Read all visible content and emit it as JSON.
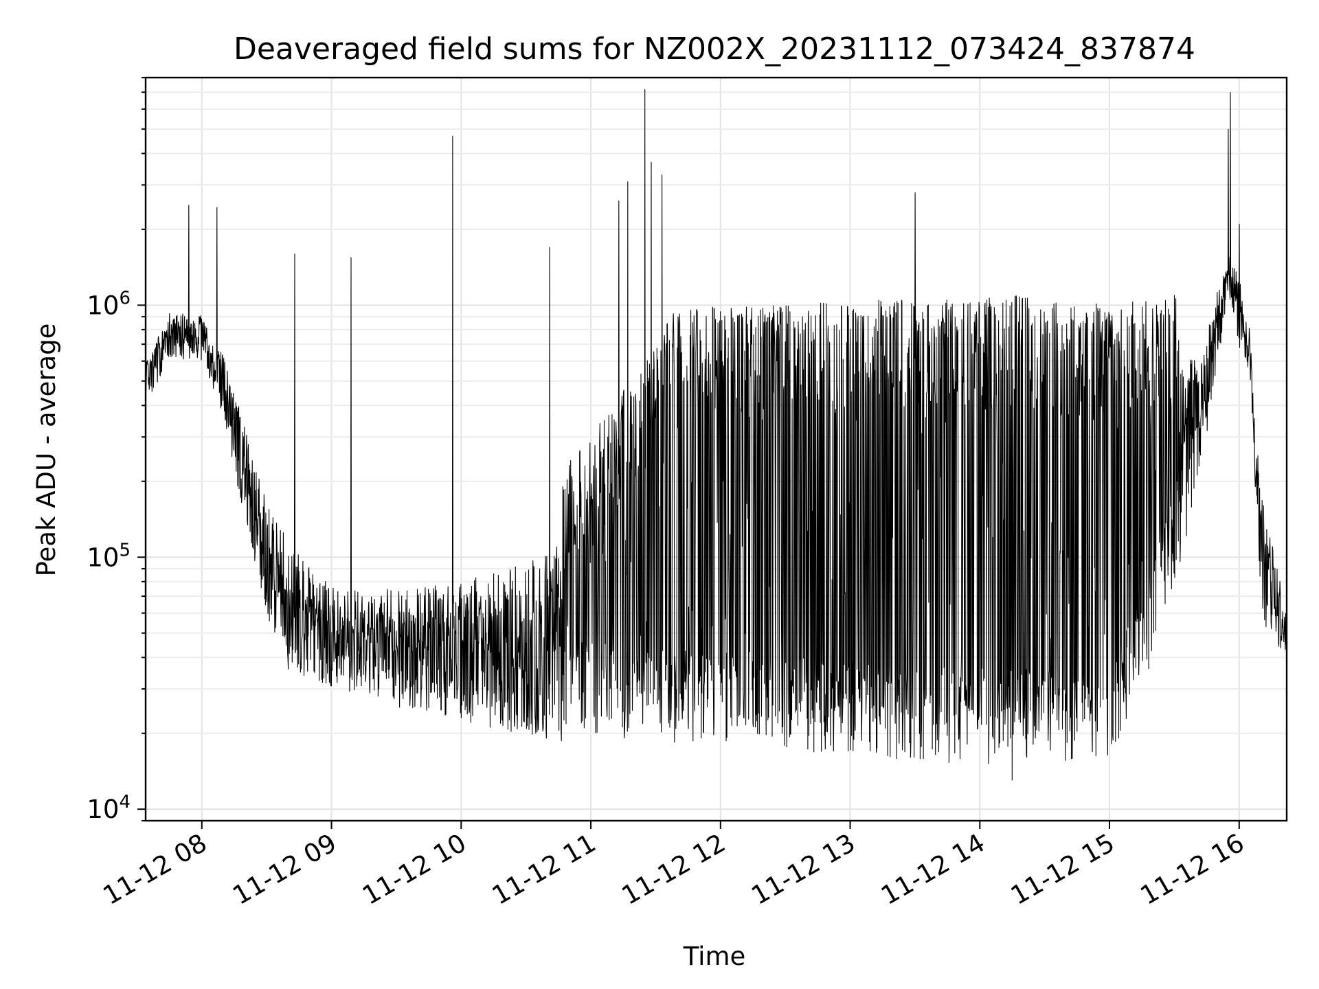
{
  "chart_data": {
    "type": "line",
    "title": "Deaveraged field sums for NZ002X_20231112_073424_837874",
    "xlabel": "Time",
    "ylabel": "Peak ADU - average",
    "yscale": "log",
    "grid": true,
    "line_color": "#000000",
    "xlim": [
      "2023-11-12 07:34",
      "2023-11-12 16:22"
    ],
    "ylim": [
      9000,
      8000000
    ],
    "x_ticks": [
      "11-12 08",
      "11-12 09",
      "11-12 10",
      "11-12 11",
      "11-12 12",
      "11-12 13",
      "11-12 14",
      "11-12 15",
      "11-12 16"
    ],
    "y_ticks": [
      {
        "base": "10",
        "exp": "4",
        "value": 10000
      },
      {
        "base": "10",
        "exp": "5",
        "value": 100000
      },
      {
        "base": "10",
        "exp": "6",
        "value": 1000000
      }
    ],
    "series": [
      {
        "baseline": {
          "x": [
            "2023-11-12 07:34",
            "2023-11-12 07:45",
            "2023-11-12 08:00",
            "2023-11-12 08:10",
            "2023-11-12 08:20",
            "2023-11-12 08:30",
            "2023-11-12 08:40",
            "2023-11-12 09:00",
            "2023-11-12 09:30",
            "2023-11-12 10:00",
            "2023-11-12 10:30",
            "2023-11-12 11:00",
            "2023-11-12 11:30",
            "2023-11-12 12:00",
            "2023-11-12 12:30",
            "2023-11-12 13:00",
            "2023-11-12 13:30",
            "2023-11-12 14:00",
            "2023-11-12 14:30",
            "2023-11-12 15:00",
            "2023-11-12 15:20",
            "2023-11-12 15:40",
            "2023-11-12 15:55",
            "2023-11-12 16:05",
            "2023-11-12 16:10",
            "2023-11-12 16:22"
          ],
          "y": [
            450000,
            700000,
            680000,
            420000,
            180000,
            80000,
            50000,
            40000,
            35000,
            33000,
            31000,
            30000,
            28000,
            27000,
            26000,
            25000,
            24000,
            23000,
            23500,
            24000,
            60000,
            250000,
            1200000,
            600000,
            80000,
            45000
          ]
        },
        "top": {
          "x": [
            "2023-11-12 07:34",
            "2023-11-12 07:50",
            "2023-11-12 08:10",
            "2023-11-12 08:30",
            "2023-11-12 09:00",
            "2023-11-12 09:40",
            "2023-11-12 10:20",
            "2023-11-12 11:00",
            "2023-11-12 11:40",
            "2023-11-12 12:20",
            "2023-11-12 13:00",
            "2023-11-12 13:40",
            "2023-11-12 14:20",
            "2023-11-12 15:00",
            "2023-11-12 15:30",
            "2023-11-12 15:50",
            "2023-11-12 16:00",
            "2023-11-12 16:08",
            "2023-11-12 16:22"
          ],
          "y": [
            600000,
            850000,
            850000,
            250000,
            110000,
            120000,
            160000,
            300000,
            1000000,
            1000000,
            1050000,
            1050000,
            1100000,
            1000000,
            1100000,
            1500000,
            2000000,
            400000,
            70000
          ]
        },
        "spikes": [
          {
            "x": "2023-11-12 07:54",
            "y": 2500000
          },
          {
            "x": "2023-11-12 08:07",
            "y": 2450000
          },
          {
            "x": "2023-11-12 08:43",
            "y": 1600000
          },
          {
            "x": "2023-11-12 09:09",
            "y": 1550000
          },
          {
            "x": "2023-11-12 09:56",
            "y": 4700000
          },
          {
            "x": "2023-11-12 10:41",
            "y": 1700000
          },
          {
            "x": "2023-11-12 11:13",
            "y": 2600000
          },
          {
            "x": "2023-11-12 11:17",
            "y": 3100000
          },
          {
            "x": "2023-11-12 11:25",
            "y": 7200000
          },
          {
            "x": "2023-11-12 11:28",
            "y": 3700000
          },
          {
            "x": "2023-11-12 11:33",
            "y": 3300000
          },
          {
            "x": "2023-11-12 13:30",
            "y": 2800000
          },
          {
            "x": "2023-11-12 15:56",
            "y": 7000000
          },
          {
            "x": "2023-11-12 15:55",
            "y": 5000000
          },
          {
            "x": "2023-11-12 16:00",
            "y": 2100000
          }
        ],
        "minimum": {
          "x": "2023-11-12 14:15",
          "y": 13000
        }
      }
    ]
  }
}
